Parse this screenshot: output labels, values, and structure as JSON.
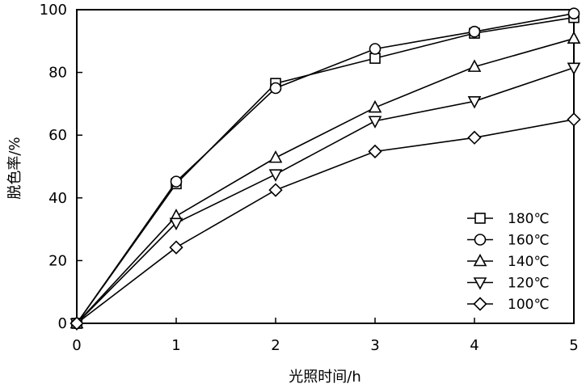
{
  "chart_data": {
    "type": "line",
    "title": "",
    "xlabel": "光照时间/h",
    "ylabel": "脱色率/%",
    "xlim": [
      0,
      5
    ],
    "ylim": [
      0,
      100
    ],
    "x_ticks": [
      0,
      1,
      2,
      3,
      4,
      5
    ],
    "y_ticks": [
      0,
      20,
      40,
      60,
      80,
      100
    ],
    "grid": false,
    "legend_position": "bottom-right",
    "x": [
      0,
      1,
      2,
      3,
      4,
      5
    ],
    "series": [
      {
        "name": "180℃",
        "marker": "square",
        "values": [
          0,
          44.5,
          76.5,
          84.5,
          92.5,
          97.5
        ]
      },
      {
        "name": "160℃",
        "marker": "circle",
        "values": [
          0,
          45.2,
          75.0,
          87.5,
          93.0,
          98.8
        ]
      },
      {
        "name": "140℃",
        "marker": "triangle-up",
        "values": [
          0,
          34.2,
          52.8,
          68.8,
          81.8,
          90.8
        ]
      },
      {
        "name": "120℃",
        "marker": "triangle-down",
        "values": [
          0,
          32.0,
          47.5,
          64.5,
          70.8,
          81.5
        ]
      },
      {
        "name": "100℃",
        "marker": "diamond",
        "values": [
          0,
          24.2,
          42.5,
          54.8,
          59.2,
          65.0
        ]
      }
    ]
  }
}
